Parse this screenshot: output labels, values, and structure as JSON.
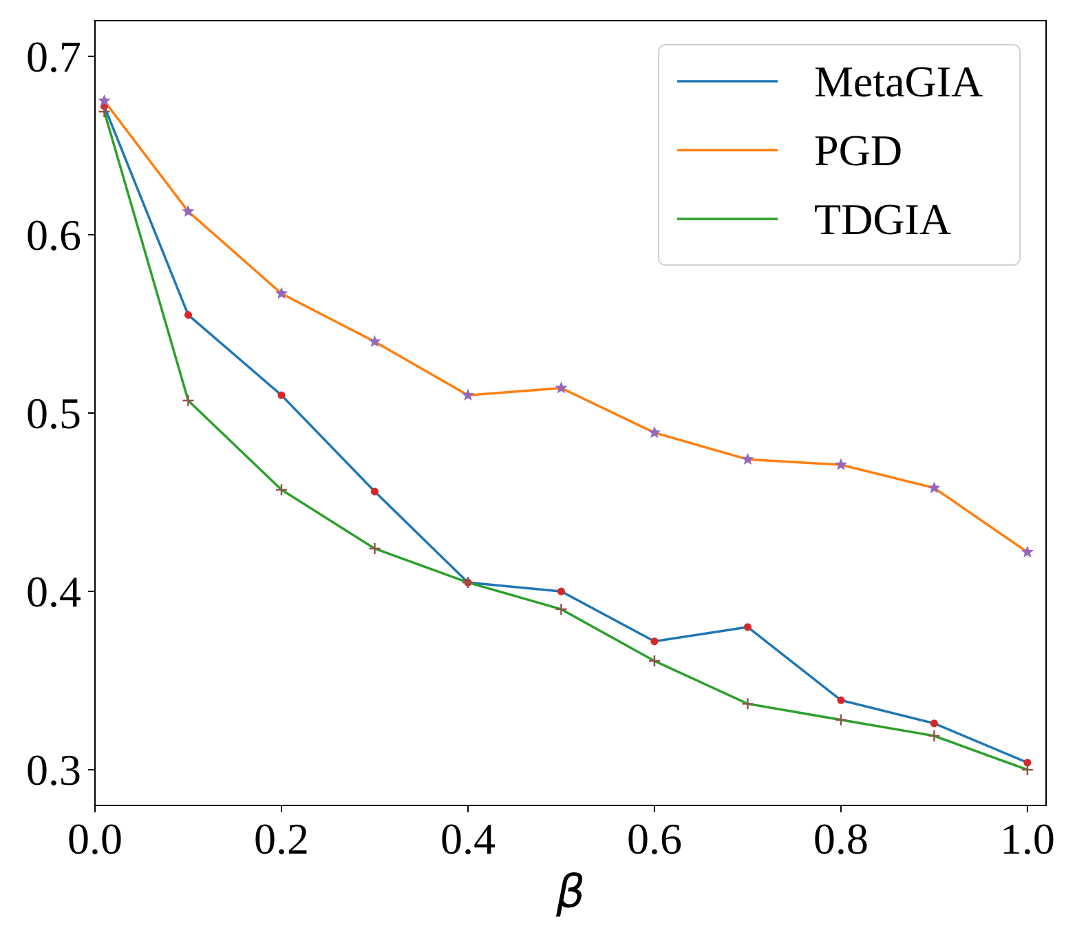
{
  "chart_data": {
    "type": "line",
    "title": "",
    "xlabel": "β",
    "ylabel": "",
    "xlim": [
      0.0,
      1.02
    ],
    "ylim": [
      0.28,
      0.72
    ],
    "xticks": [
      "0.0",
      "0.2",
      "0.4",
      "0.6",
      "0.8",
      "1.0"
    ],
    "yticks": [
      "0.3",
      "0.4",
      "0.5",
      "0.6",
      "0.7"
    ],
    "legend_position": "top-right",
    "x": [
      0.01,
      0.1,
      0.2,
      0.3,
      0.4,
      0.5,
      0.6,
      0.7,
      0.8,
      0.9,
      1.0
    ],
    "series": [
      {
        "name": "MetaGIA",
        "color": "#1f77b4",
        "marker": "dot",
        "marker_color": "#d62728",
        "values": [
          0.672,
          0.555,
          0.51,
          0.456,
          0.405,
          0.4,
          0.372,
          0.38,
          0.339,
          0.326,
          0.304
        ]
      },
      {
        "name": "PGD",
        "color": "#ff7f0e",
        "marker": "star",
        "marker_color": "#9467bd",
        "values": [
          0.675,
          0.613,
          0.567,
          0.54,
          0.51,
          0.514,
          0.489,
          0.474,
          0.471,
          0.458,
          0.422
        ]
      },
      {
        "name": "TDGIA",
        "color": "#2ca02c",
        "marker": "plus",
        "marker_color": "#8c564b",
        "values": [
          0.669,
          0.507,
          0.457,
          0.424,
          0.405,
          0.39,
          0.361,
          0.337,
          0.328,
          0.319,
          0.3
        ]
      }
    ]
  }
}
